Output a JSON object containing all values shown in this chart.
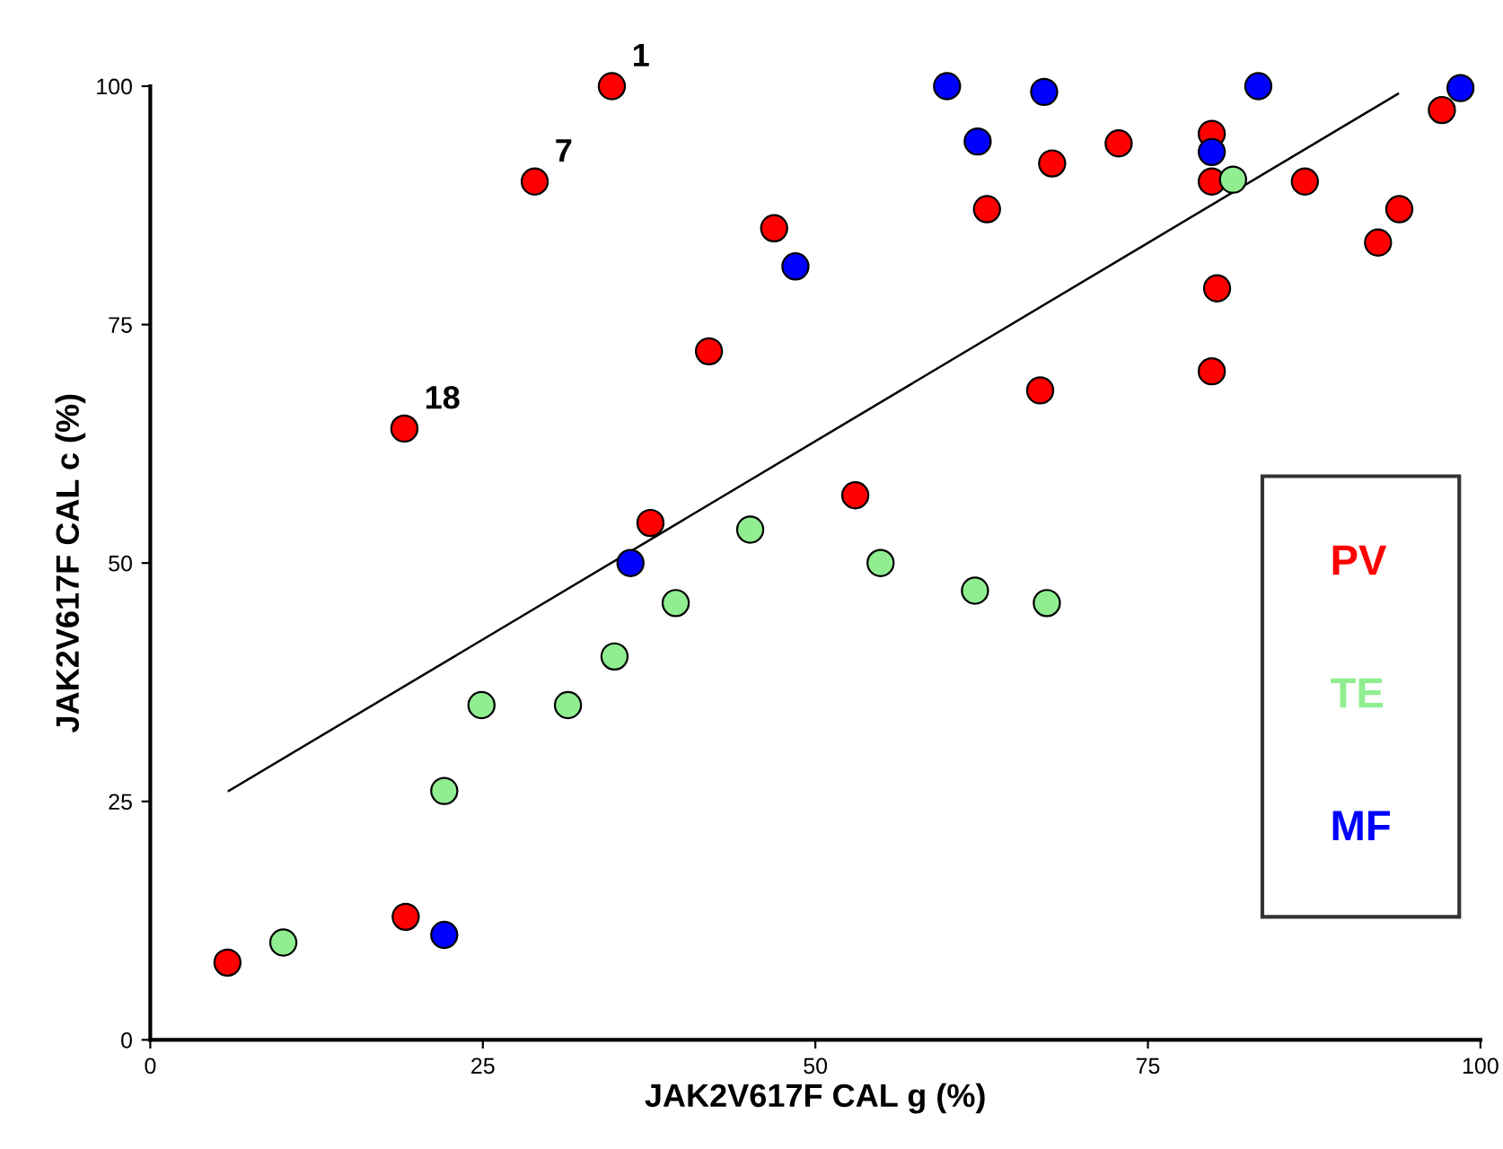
{
  "chart_data": {
    "type": "scatter",
    "xlabel": "JAK2V617F CAL g (%)",
    "ylabel": "JAK2V617F CAL c (%)",
    "xlim": [
      0,
      100
    ],
    "ylim": [
      0,
      100
    ],
    "xticks": [
      0,
      25,
      50,
      75,
      100
    ],
    "yticks": [
      0,
      25,
      50,
      75,
      100
    ],
    "grid": false,
    "legend": "right",
    "marker": "circle",
    "series": [
      {
        "name": "PV",
        "color": "#ff0000",
        "x": [
          34.7,
          28.9,
          19.1,
          37.6,
          5.8,
          19.2,
          42.0,
          46.9,
          53.0,
          62.9,
          67.8,
          72.8,
          79.8,
          79.8,
          80.2,
          79.8,
          66.9,
          86.8,
          93.9,
          92.3,
          97.1
        ],
        "values": [
          100,
          90,
          64.1,
          54.2,
          8.1,
          12.9,
          72.2,
          85.1,
          57.1,
          87.1,
          91.9,
          94.0,
          95.0,
          90.0,
          78.8,
          70.1,
          68.1,
          90.0,
          87.1,
          83.6,
          97.5
        ]
      },
      {
        "name": "TE",
        "color": "#90ee90",
        "x": [
          81.4,
          10.0,
          22.1,
          24.9,
          31.4,
          34.9,
          39.5,
          45.1,
          54.9,
          62.0,
          67.4
        ],
        "values": [
          90.2,
          10.2,
          26.1,
          35.1,
          35.1,
          40.2,
          45.8,
          53.5,
          50.0,
          47.1,
          45.8
        ]
      },
      {
        "name": "MF",
        "color": "#0000ff",
        "x": [
          36.1,
          22.1,
          48.5,
          59.9,
          67.2,
          62.2,
          83.3,
          79.8,
          98.5
        ],
        "values": [
          50.0,
          11.0,
          81.1,
          100,
          99.4,
          94.2,
          100,
          93.1,
          99.8
        ]
      },
      {
        "type": "line",
        "color": "#000000",
        "marker": "none",
        "x": [
          5.9,
          93.8
        ],
        "values": [
          26.1,
          99.2
        ]
      }
    ],
    "annotations": [
      {
        "text": "1",
        "x": 34.7,
        "y": 100
      },
      {
        "text": "7",
        "x": 28.9,
        "y": 90
      },
      {
        "text": "18",
        "x": 19.1,
        "y": 64.1
      }
    ]
  }
}
